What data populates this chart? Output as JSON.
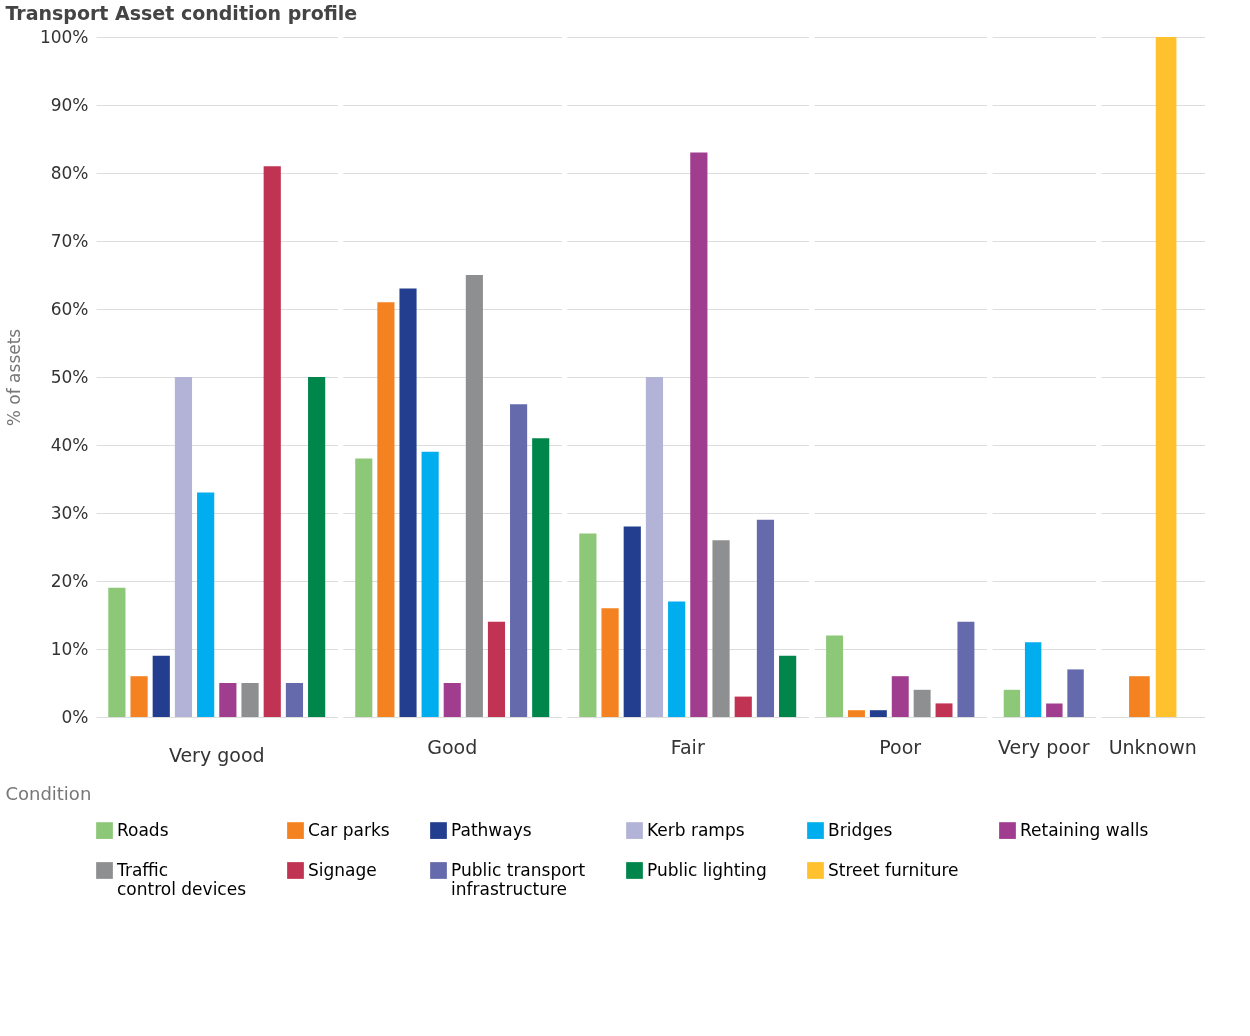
{
  "chart_data": {
    "type": "bar",
    "title": "Transport Asset condition profile",
    "xlabel": "Condition",
    "ylabel": "% of assets",
    "categories": [
      "Very good",
      "Good",
      "Fair",
      "Poor",
      "Very poor",
      "Unknown"
    ],
    "series": [
      {
        "name": "Roads",
        "color": "#8dc878",
        "values": [
          19,
          38,
          27,
          12,
          4,
          null
        ]
      },
      {
        "name": "Car parks",
        "color": "#f58220",
        "values": [
          6,
          61,
          16,
          1,
          null,
          6
        ]
      },
      {
        "name": "Pathways",
        "color": "#233e8f",
        "values": [
          9,
          63,
          28,
          1,
          null,
          null
        ]
      },
      {
        "name": "Kerb ramps",
        "color": "#b3b3d8",
        "values": [
          50,
          null,
          50,
          null,
          null,
          null
        ]
      },
      {
        "name": "Bridges",
        "color": "#00aeef",
        "values": [
          33,
          39,
          17,
          null,
          11,
          null
        ]
      },
      {
        "name": "Retaining walls",
        "color": "#a03d8f",
        "values": [
          5,
          5,
          83,
          6,
          2,
          null
        ]
      },
      {
        "name": "Traffic control devices",
        "color": "#8e8f91",
        "values": [
          5,
          65,
          26,
          4,
          null,
          null
        ]
      },
      {
        "name": "Signage",
        "color": "#c13352",
        "values": [
          81,
          14,
          3,
          2,
          null,
          null
        ]
      },
      {
        "name": "Public transport infrastructure",
        "color": "#646aab",
        "values": [
          5,
          46,
          29,
          14,
          7,
          null
        ]
      },
      {
        "name": "Public lighting",
        "color": "#00864a",
        "values": [
          50,
          41,
          9,
          null,
          null,
          null
        ]
      },
      {
        "name": "Street furniture",
        "color": "#ffc12e",
        "values": [
          null,
          null,
          null,
          null,
          null,
          100
        ]
      }
    ],
    "ylim": [
      0,
      100
    ],
    "yticks": [
      {
        "value": 0,
        "label": "0%"
      },
      {
        "value": 10,
        "label": "10%"
      },
      {
        "value": 20,
        "label": "20%"
      },
      {
        "value": 30,
        "label": "30%"
      },
      {
        "value": 40,
        "label": "40%"
      },
      {
        "value": 50,
        "label": "50%"
      },
      {
        "value": 60,
        "label": "60%"
      },
      {
        "value": 70,
        "label": "70%"
      },
      {
        "value": 80,
        "label": "80%"
      },
      {
        "value": 90,
        "label": "90%"
      },
      {
        "value": 100,
        "label": "100%"
      }
    ],
    "grid": "y",
    "legend": "bottom"
  }
}
